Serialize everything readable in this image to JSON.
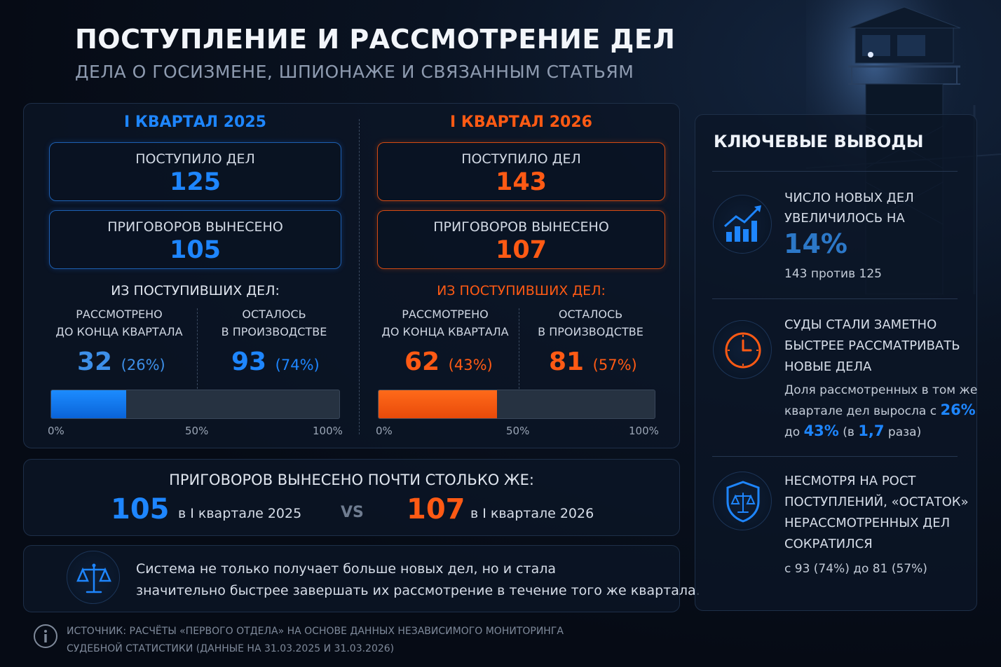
{
  "header": {
    "title": "ПОСТУПЛЕНИЕ И РАССМОТРЕНИЕ ДЕЛ",
    "subtitle": "ДЕЛА О ГОСИЗМЕНЕ, ШПИОНАЖЕ И СВЯЗАННЫМ СТАТЬЯМ"
  },
  "q2025": {
    "heading": "I КВАРТАЛ 2025",
    "received_label": "ПОСТУПИЛО ДЕЛ",
    "received_value": "125",
    "verdicts_label": "ПРИГОВОРОВ ВЫНЕСЕНО",
    "verdicts_value": "105",
    "of_received": "ИЗ ПОСТУПИВШИХ ДЕЛ:",
    "reviewed_label_1": "РАССМОТРЕНО",
    "reviewed_label_2": "ДО КОНЦА КВАРТАЛА",
    "reviewed_value": "32",
    "reviewed_pct": "(26%)",
    "remaining_label_1": "ОСТАЛОСЬ",
    "remaining_label_2": "В ПРОИЗВОДСТВЕ",
    "remaining_value": "93",
    "remaining_pct": "(74%)",
    "bar_fill": 0.26,
    "tick_0": "0%",
    "tick_50": "50%",
    "tick_100": "100%"
  },
  "q2026": {
    "heading": "I КВАРТАЛ 2026",
    "received_label": "ПОСТУПИЛО ДЕЛ",
    "received_value": "143",
    "verdicts_label": "ПРИГОВОРОВ ВЫНЕСЕНО",
    "verdicts_value": "107",
    "of_received": "ИЗ ПОСТУПИВШИХ ДЕЛ:",
    "reviewed_label_1": "РАССМОТРЕНО",
    "reviewed_label_2": "ДО КОНЦА КВАРТАЛА",
    "reviewed_value": "62",
    "reviewed_pct": "(43%)",
    "remaining_label_1": "ОСТАЛОСЬ",
    "remaining_label_2": "В ПРОИЗВОДСТВЕ",
    "remaining_value": "81",
    "remaining_pct": "(57%)",
    "bar_fill": 0.43,
    "tick_0": "0%",
    "tick_50": "50%",
    "tick_100": "100%"
  },
  "verdicts_compare": {
    "title": "ПРИГОВОРОВ ВЫНЕСЕНО ПОЧТИ СТОЛЬКО ЖЕ:",
    "left_value": "105",
    "left_label": "в I квартале 2025",
    "vs": "VS",
    "right_value": "107",
    "right_label": "в I квартале 2026"
  },
  "summary": {
    "line1": "Система не только получает больше новых дел, но и стала",
    "line2": "значительно быстрее завершать их рассмотрение в течение того же квартала."
  },
  "key_points": {
    "title": "КЛЮЧЕВЫЕ ВЫВОДЫ",
    "p1_line1": "ЧИСЛО НОВЫХ ДЕЛ",
    "p1_line2": "УВЕЛИЧИЛОСЬ НА",
    "p1_big": "14%",
    "p1_small": "143 против 125",
    "p2_line1": "СУДЫ СТАЛИ ЗАМЕТНО",
    "p2_line2": "БЫСТРЕЕ РАССМАТРИВАТЬ",
    "p2_line3": "НОВЫЕ ДЕЛА",
    "p2_small1": "Доля рассмотренных в том же",
    "p2_small2_a": "квартале дел выросла с ",
    "p2_small2_b": "26%",
    "p2_small3_a": "до ",
    "p2_small3_b": "43%",
    "p2_small3_c": " (в ",
    "p2_small3_d": "1,7",
    "p2_small3_e": " раза)",
    "p3_line1": "НЕСМОТРЯ НА РОСТ",
    "p3_line2": "ПОСТУПЛЕНИЙ, «ОСТАТОК»",
    "p3_line3": "НЕРАССМОТРЕННЫХ ДЕЛ",
    "p3_line4": "СОКРАТИЛСЯ",
    "p3_small": "с 93 (74%) до 81 (57%)"
  },
  "source": {
    "line1": "ИСТОЧНИК: РАСЧЁТЫ «ПЕРВОГО ОТДЕЛА» НА ОСНОВЕ ДАННЫХ НЕЗАВИСИМОГО МОНИТОРИНГА",
    "line2": "СУДЕБНОЙ СТАТИСТИКИ (ДАННЫЕ НА 31.03.2025 И 31.03.2026)"
  },
  "colors": {
    "blue": "#1e86ff",
    "orange": "#ff5a14",
    "background": "#060b15"
  },
  "icons": [
    "chart-growth-icon",
    "clock-icon",
    "shield-scales-icon",
    "scales-icon",
    "info-icon",
    "watchtower-illustration"
  ]
}
